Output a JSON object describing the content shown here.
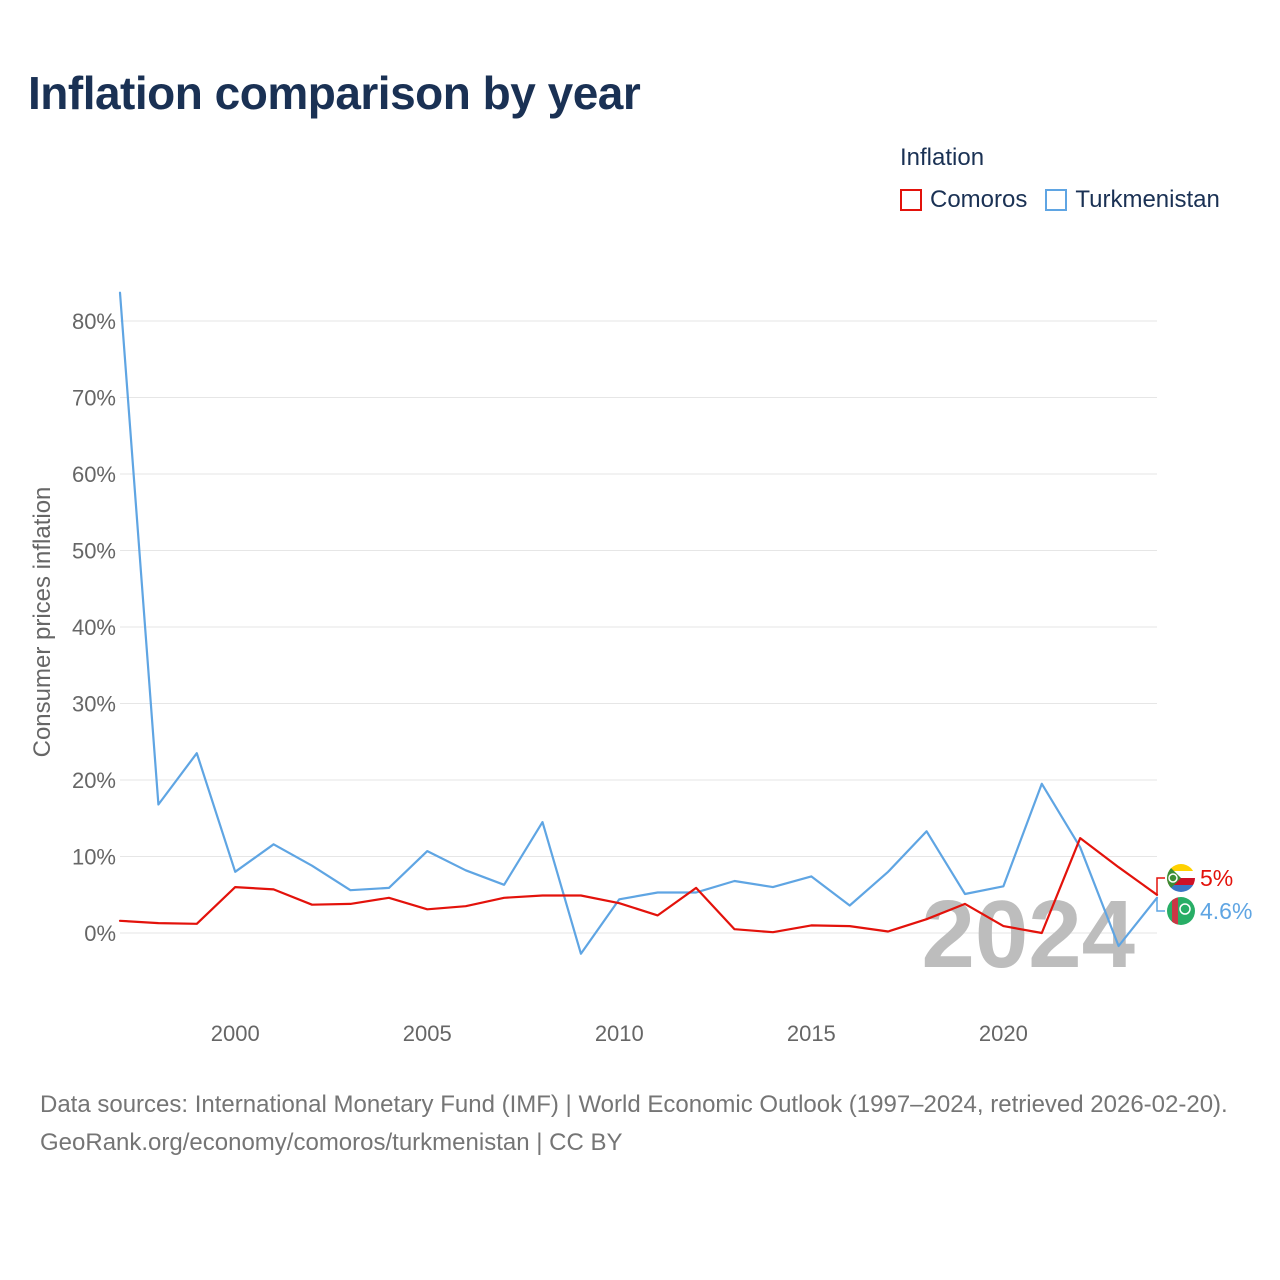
{
  "title": "Inflation comparison by year",
  "legend": {
    "title": "Inflation",
    "items": [
      {
        "label": "Comoros",
        "color": "#e3120b"
      },
      {
        "label": "Turkmenistan",
        "color": "#5fa5e3"
      }
    ]
  },
  "chart_data": {
    "type": "line",
    "title": "Inflation comparison by year",
    "xlabel": "",
    "ylabel": "Consumer prices inflation",
    "x": [
      1997,
      1998,
      1999,
      2000,
      2001,
      2002,
      2003,
      2004,
      2005,
      2006,
      2007,
      2008,
      2009,
      2010,
      2011,
      2012,
      2013,
      2014,
      2015,
      2016,
      2017,
      2018,
      2019,
      2020,
      2021,
      2022,
      2023,
      2024
    ],
    "xlim": [
      1997,
      2024
    ],
    "ylim": [
      -10,
      84
    ],
    "x_ticks": [
      2000,
      2005,
      2010,
      2015,
      2020
    ],
    "x_tick_labels": [
      "2000",
      "2005",
      "2010",
      "2015",
      "2020"
    ],
    "y_ticks": [
      0,
      10,
      20,
      30,
      40,
      50,
      60,
      70,
      80
    ],
    "y_tick_labels": [
      "0%",
      "10%",
      "20%",
      "30%",
      "40%",
      "50%",
      "60%",
      "70%",
      "80%"
    ],
    "grid": true,
    "year_label": "2024",
    "series": [
      {
        "name": "Comoros",
        "color": "#e3120b",
        "values": [
          1.6,
          1.3,
          1.2,
          6.0,
          5.7,
          3.7,
          3.8,
          4.6,
          3.1,
          3.5,
          4.6,
          4.9,
          4.9,
          3.9,
          2.3,
          5.9,
          0.5,
          0.1,
          1.0,
          0.9,
          0.2,
          1.8,
          3.8,
          0.9,
          0.0,
          12.4,
          8.6,
          5.0
        ],
        "end_label": "5%"
      },
      {
        "name": "Turkmenistan",
        "color": "#5fa5e3",
        "values": [
          83.7,
          16.8,
          23.5,
          8.0,
          11.6,
          8.8,
          5.6,
          5.9,
          10.7,
          8.2,
          6.3,
          14.5,
          -2.7,
          4.4,
          5.3,
          5.3,
          6.8,
          6.0,
          7.4,
          3.6,
          8.0,
          13.3,
          5.1,
          6.1,
          19.5,
          11.2,
          -1.7,
          4.6
        ],
        "end_label": "4.6%"
      }
    ]
  },
  "source": {
    "line1": "Data sources: International Monetary Fund (IMF) | World Economic Outlook (1997–2024, retrieved 2026-02-20).",
    "line2": "GeoRank.org/economy/comoros/turkmenistan | CC BY"
  }
}
